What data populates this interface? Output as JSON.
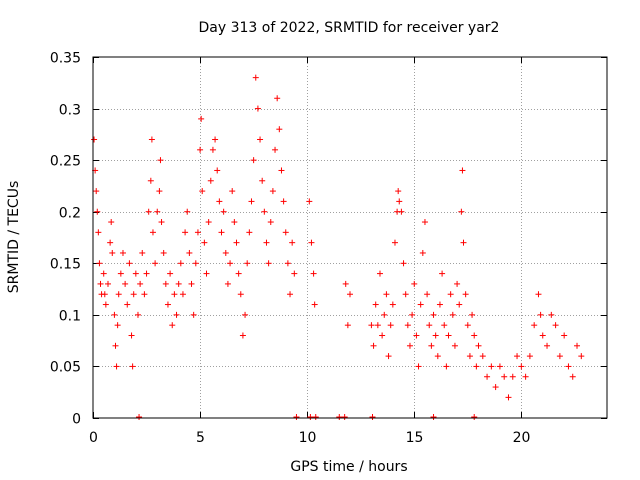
{
  "chart_data": {
    "type": "scatter",
    "title": "Day 313 of 2022, SRMTID for receiver yar2",
    "xlabel": "GPS time / hours",
    "ylabel": "SRMTID / TECUs",
    "xlim": [
      0,
      24
    ],
    "ylim": [
      0,
      0.35
    ],
    "xticks": [
      0,
      5,
      10,
      15,
      20
    ],
    "xtick_labels": [
      "0",
      "5",
      "10",
      "15",
      "20"
    ],
    "yticks": [
      0,
      0.05,
      0.1,
      0.15,
      0.2,
      0.25,
      0.3,
      0.35
    ],
    "ytick_labels": [
      "0",
      "0.05",
      "0.1",
      "0.15",
      "0.2",
      "0.25",
      "0.3",
      "0.35"
    ],
    "grid": true,
    "marker": "plus",
    "color": "#ff0000",
    "series": [
      {
        "name": "SRMTID",
        "points": [
          [
            0.05,
            0.27
          ],
          [
            0.1,
            0.24
          ],
          [
            0.15,
            0.22
          ],
          [
            0.2,
            0.2
          ],
          [
            0.25,
            0.18
          ],
          [
            0.3,
            0.15
          ],
          [
            0.35,
            0.13
          ],
          [
            0.4,
            0.12
          ],
          [
            0.5,
            0.14
          ],
          [
            0.55,
            0.12
          ],
          [
            0.6,
            0.11
          ],
          [
            0.7,
            0.13
          ],
          [
            0.8,
            0.17
          ],
          [
            0.85,
            0.19
          ],
          [
            0.9,
            0.16
          ],
          [
            1.0,
            0.1
          ],
          [
            1.05,
            0.07
          ],
          [
            1.1,
            0.05
          ],
          [
            1.15,
            0.09
          ],
          [
            1.2,
            0.12
          ],
          [
            1.3,
            0.14
          ],
          [
            1.4,
            0.16
          ],
          [
            1.5,
            0.13
          ],
          [
            1.6,
            0.11
          ],
          [
            1.7,
            0.15
          ],
          [
            1.8,
            0.08
          ],
          [
            1.85,
            0.05
          ],
          [
            1.9,
            0.12
          ],
          [
            2.0,
            0.14
          ],
          [
            2.1,
            0.1
          ],
          [
            2.2,
            0.13
          ],
          [
            2.3,
            0.16
          ],
          [
            2.4,
            0.12
          ],
          [
            2.5,
            0.14
          ],
          [
            2.6,
            0.2
          ],
          [
            2.7,
            0.23
          ],
          [
            2.75,
            0.27
          ],
          [
            2.8,
            0.18
          ],
          [
            2.9,
            0.15
          ],
          [
            3.0,
            0.2
          ],
          [
            3.1,
            0.22
          ],
          [
            3.15,
            0.25
          ],
          [
            3.2,
            0.19
          ],
          [
            3.3,
            0.16
          ],
          [
            3.4,
            0.13
          ],
          [
            3.5,
            0.11
          ],
          [
            3.6,
            0.14
          ],
          [
            3.7,
            0.09
          ],
          [
            3.8,
            0.12
          ],
          [
            3.9,
            0.1
          ],
          [
            4.0,
            0.13
          ],
          [
            4.1,
            0.15
          ],
          [
            4.2,
            0.12
          ],
          [
            4.3,
            0.18
          ],
          [
            4.4,
            0.2
          ],
          [
            4.5,
            0.16
          ],
          [
            4.6,
            0.13
          ],
          [
            4.7,
            0.1
          ],
          [
            4.8,
            0.15
          ],
          [
            4.9,
            0.18
          ],
          [
            5.0,
            0.26
          ],
          [
            5.05,
            0.29
          ],
          [
            5.1,
            0.22
          ],
          [
            5.2,
            0.17
          ],
          [
            5.3,
            0.14
          ],
          [
            5.4,
            0.19
          ],
          [
            5.5,
            0.23
          ],
          [
            5.6,
            0.26
          ],
          [
            5.7,
            0.27
          ],
          [
            5.8,
            0.24
          ],
          [
            5.9,
            0.21
          ],
          [
            6.0,
            0.18
          ],
          [
            6.1,
            0.2
          ],
          [
            6.2,
            0.16
          ],
          [
            6.3,
            0.13
          ],
          [
            6.4,
            0.15
          ],
          [
            6.5,
            0.22
          ],
          [
            6.6,
            0.19
          ],
          [
            6.7,
            0.17
          ],
          [
            6.8,
            0.14
          ],
          [
            6.9,
            0.12
          ],
          [
            7.0,
            0.08
          ],
          [
            7.1,
            0.1
          ],
          [
            7.2,
            0.15
          ],
          [
            7.3,
            0.18
          ],
          [
            7.4,
            0.21
          ],
          [
            7.5,
            0.25
          ],
          [
            7.6,
            0.33
          ],
          [
            7.7,
            0.3
          ],
          [
            7.8,
            0.27
          ],
          [
            7.9,
            0.23
          ],
          [
            8.0,
            0.2
          ],
          [
            8.1,
            0.17
          ],
          [
            8.2,
            0.15
          ],
          [
            8.3,
            0.19
          ],
          [
            8.4,
            0.22
          ],
          [
            8.5,
            0.26
          ],
          [
            8.6,
            0.31
          ],
          [
            8.7,
            0.28
          ],
          [
            8.8,
            0.24
          ],
          [
            8.9,
            0.21
          ],
          [
            9.0,
            0.18
          ],
          [
            9.1,
            0.15
          ],
          [
            9.2,
            0.12
          ],
          [
            9.3,
            0.17
          ],
          [
            9.4,
            0.14
          ],
          [
            10.1,
            0.21
          ],
          [
            10.2,
            0.17
          ],
          [
            10.3,
            0.14
          ],
          [
            10.35,
            0.11
          ],
          [
            11.8,
            0.13
          ],
          [
            11.9,
            0.09
          ],
          [
            12.0,
            0.12
          ],
          [
            13.0,
            0.09
          ],
          [
            13.1,
            0.07
          ],
          [
            13.2,
            0.11
          ],
          [
            13.3,
            0.09
          ],
          [
            13.4,
            0.14
          ],
          [
            13.5,
            0.08
          ],
          [
            13.6,
            0.1
          ],
          [
            13.7,
            0.12
          ],
          [
            13.8,
            0.06
          ],
          [
            13.9,
            0.09
          ],
          [
            14.0,
            0.11
          ],
          [
            14.1,
            0.17
          ],
          [
            14.2,
            0.2
          ],
          [
            14.25,
            0.22
          ],
          [
            14.3,
            0.21
          ],
          [
            14.4,
            0.2
          ],
          [
            14.5,
            0.15
          ],
          [
            14.6,
            0.12
          ],
          [
            14.7,
            0.09
          ],
          [
            14.8,
            0.07
          ],
          [
            14.9,
            0.1
          ],
          [
            15.0,
            0.13
          ],
          [
            15.1,
            0.08
          ],
          [
            15.2,
            0.05
          ],
          [
            15.3,
            0.11
          ],
          [
            15.4,
            0.16
          ],
          [
            15.5,
            0.19
          ],
          [
            15.6,
            0.12
          ],
          [
            15.7,
            0.09
          ],
          [
            15.8,
            0.07
          ],
          [
            15.9,
            0.1
          ],
          [
            16.0,
            0.08
          ],
          [
            16.1,
            0.06
          ],
          [
            16.2,
            0.11
          ],
          [
            16.3,
            0.14
          ],
          [
            16.4,
            0.09
          ],
          [
            16.5,
            0.05
          ],
          [
            16.6,
            0.08
          ],
          [
            16.7,
            0.12
          ],
          [
            16.8,
            0.1
          ],
          [
            16.9,
            0.07
          ],
          [
            17.0,
            0.13
          ],
          [
            17.1,
            0.11
          ],
          [
            17.2,
            0.2
          ],
          [
            17.25,
            0.24
          ],
          [
            17.3,
            0.17
          ],
          [
            17.4,
            0.12
          ],
          [
            17.5,
            0.09
          ],
          [
            17.6,
            0.06
          ],
          [
            17.7,
            0.1
          ],
          [
            17.8,
            0.08
          ],
          [
            17.9,
            0.05
          ],
          [
            18.0,
            0.07
          ],
          [
            18.2,
            0.06
          ],
          [
            18.4,
            0.04
          ],
          [
            18.6,
            0.05
          ],
          [
            18.8,
            0.03
          ],
          [
            19.0,
            0.05
          ],
          [
            19.2,
            0.04
          ],
          [
            19.4,
            0.02
          ],
          [
            19.6,
            0.04
          ],
          [
            19.8,
            0.06
          ],
          [
            20.0,
            0.05
          ],
          [
            20.2,
            0.04
          ],
          [
            20.4,
            0.06
          ],
          [
            20.6,
            0.09
          ],
          [
            20.8,
            0.12
          ],
          [
            20.9,
            0.1
          ],
          [
            21.0,
            0.08
          ],
          [
            21.2,
            0.07
          ],
          [
            21.4,
            0.1
          ],
          [
            21.6,
            0.09
          ],
          [
            21.8,
            0.06
          ],
          [
            22.0,
            0.08
          ],
          [
            22.2,
            0.05
          ],
          [
            22.4,
            0.04
          ],
          [
            22.6,
            0.07
          ],
          [
            22.8,
            0.06
          ]
        ]
      }
    ],
    "zero_markers_x": [
      2.15,
      9.5,
      10.15,
      10.4,
      11.5,
      11.75,
      13.05,
      15.9,
      17.8
    ]
  }
}
